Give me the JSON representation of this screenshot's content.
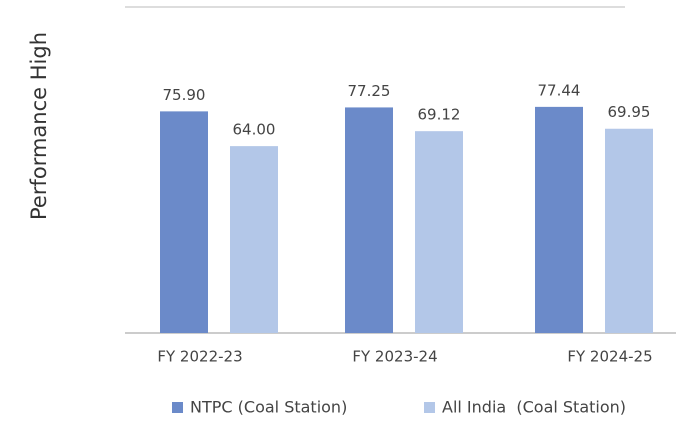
{
  "chart_data": {
    "type": "bar",
    "y_axis_label": "Performance High",
    "categories": [
      "FY 2022-23",
      "FY 2023-24",
      "FY 2024-25"
    ],
    "series": [
      {
        "name": "NTPC (Coal Station)",
        "color": "#6b8ac9",
        "values": [
          75.9,
          77.25,
          77.44
        ],
        "value_labels": [
          "75.90",
          "77.25",
          "77.44"
        ]
      },
      {
        "name": "All India  (Coal Station)",
        "color": "#b3c7e8",
        "values": [
          64.0,
          69.12,
          69.95
        ],
        "value_labels": [
          "64.00",
          "69.12",
          "69.95"
        ]
      }
    ]
  }
}
